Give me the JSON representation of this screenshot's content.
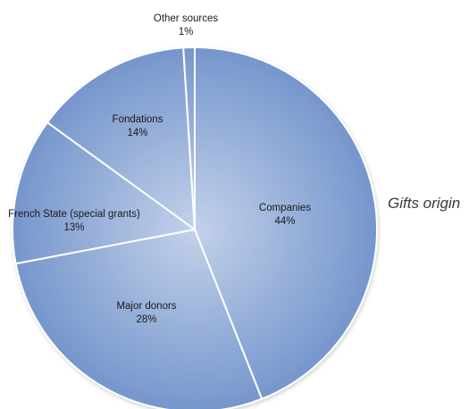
{
  "chart_data": {
    "type": "pie",
    "title": "Gifts origin",
    "legend": "none",
    "slices": [
      {
        "label": "Companies",
        "value": 44,
        "display": "44%"
      },
      {
        "label": "Major donors",
        "value": 28,
        "display": "28%"
      },
      {
        "label": "French State (special grants)",
        "value": 13,
        "display": "13%"
      },
      {
        "label": "Fondations",
        "value": 14,
        "display": "14%"
      },
      {
        "label": "Other sources",
        "value": 1,
        "display": "1%"
      }
    ],
    "colors": {
      "fill_light": "#c3d1ea",
      "fill_dark": "#7596cc",
      "stroke": "#ffffff",
      "label": "#1a1a1a"
    }
  }
}
